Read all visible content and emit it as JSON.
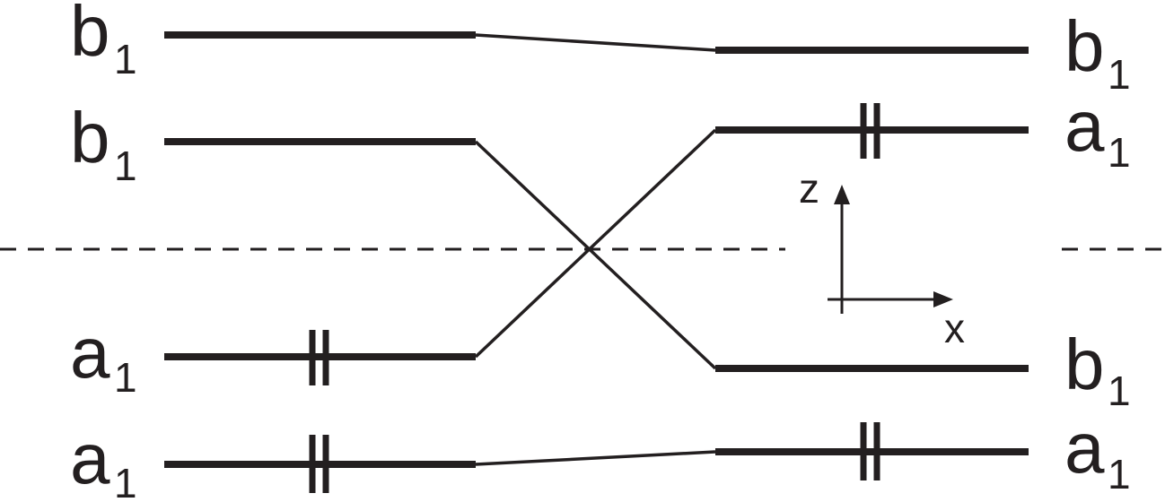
{
  "left_levels": [
    {
      "symmetry": "b",
      "subscript": "1",
      "electrons": 0
    },
    {
      "symmetry": "b",
      "subscript": "1",
      "electrons": 0
    },
    {
      "symmetry": "a",
      "subscript": "1",
      "electrons": 2
    },
    {
      "symmetry": "a",
      "subscript": "1",
      "electrons": 2
    }
  ],
  "right_levels": [
    {
      "symmetry": "b",
      "subscript": "1",
      "electrons": 0
    },
    {
      "symmetry": "a",
      "subscript": "1",
      "electrons": 2
    },
    {
      "symmetry": "b",
      "subscript": "1",
      "electrons": 0
    },
    {
      "symmetry": "a",
      "subscript": "1",
      "electrons": 2
    }
  ],
  "correlations": [
    [
      0,
      0
    ],
    [
      1,
      2
    ],
    [
      2,
      1
    ],
    [
      3,
      3
    ]
  ],
  "axes": {
    "vertical": "z",
    "horizontal": "x"
  }
}
